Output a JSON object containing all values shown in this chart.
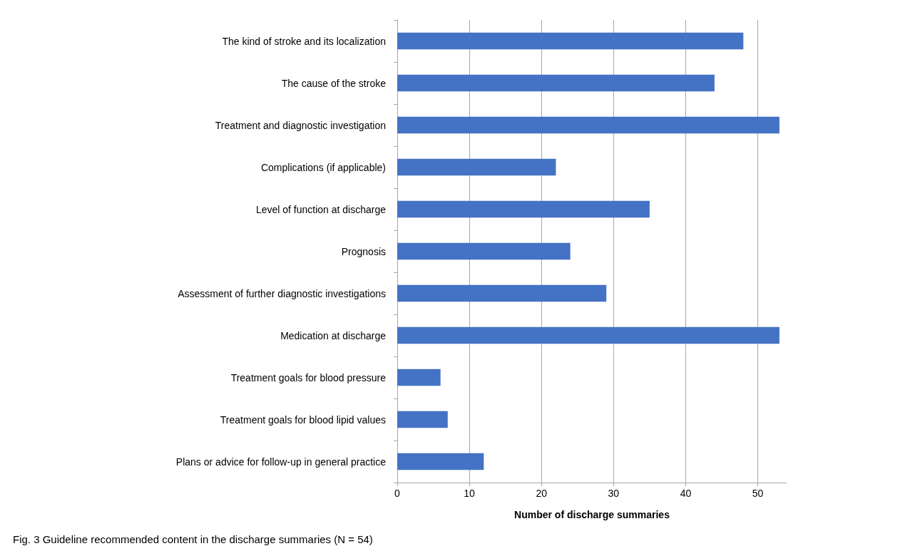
{
  "chart_data": {
    "type": "bar",
    "orientation": "horizontal",
    "categories": [
      "The kind of stroke and its localization",
      "The cause of the stroke",
      "Treatment and diagnostic investigation",
      "Complications (if applicable)",
      "Level of function at discharge",
      "Prognosis",
      "Assessment of further diagnostic investigations",
      "Medication at discharge",
      "Treatment goals for blood pressure",
      "Treatment goals for blood lipid values",
      "Plans or advice for follow-up in general practice"
    ],
    "values": [
      48,
      44,
      53,
      22,
      35,
      24,
      29,
      53,
      6,
      7,
      12
    ],
    "color": "#4472c4",
    "xlim": [
      0,
      54
    ],
    "xticks": [
      0,
      10,
      20,
      30,
      40,
      50
    ],
    "xlabel": "Number of discharge summaries",
    "grid": "x",
    "annotations": [
      "Fig. 3 Guideline recommended content in the discharge summaries (N = 54)"
    ]
  }
}
